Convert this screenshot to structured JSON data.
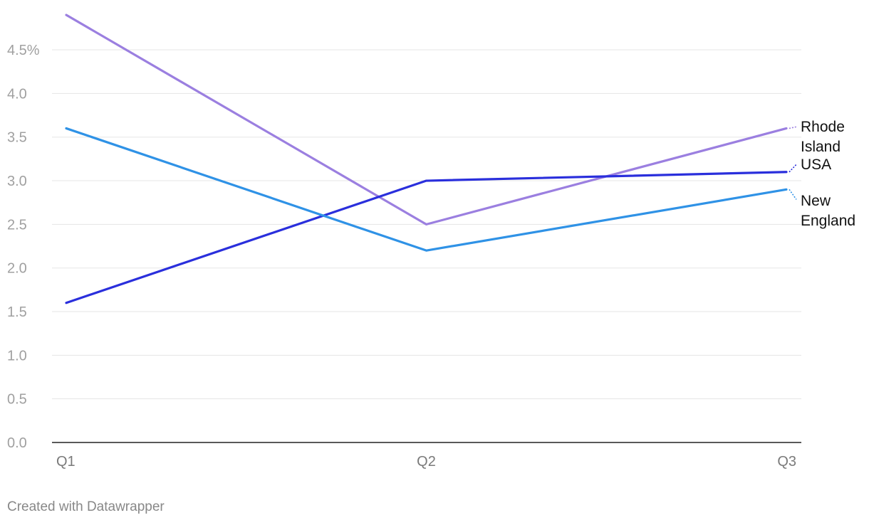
{
  "chart_data": {
    "type": "line",
    "categories": [
      "Q1",
      "Q2",
      "Q3"
    ],
    "ylim": [
      0,
      4.9
    ],
    "yticks": [
      0.0,
      0.5,
      1.0,
      1.5,
      2.0,
      2.5,
      3.0,
      3.5,
      4.0,
      4.5
    ],
    "ytick_labels": [
      "0.0",
      "0.5",
      "1.0",
      "1.5",
      "2.0",
      "2.5",
      "3.0",
      "3.5",
      "4.0",
      "4.5%"
    ],
    "grid": true,
    "series": [
      {
        "name": "Rhode Island",
        "label_lines": [
          "Rhode",
          "Island"
        ],
        "color": "#9b7fe0",
        "values": [
          4.9,
          2.5,
          3.6
        ]
      },
      {
        "name": "USA",
        "label_lines": [
          "USA"
        ],
        "color": "#2a2fdc",
        "values": [
          1.6,
          3.0,
          3.1
        ]
      },
      {
        "name": "New England",
        "label_lines": [
          "New",
          "England"
        ],
        "color": "#2f92e6",
        "values": [
          3.6,
          2.2,
          2.9
        ]
      }
    ]
  },
  "footer": {
    "text": "Created with Datawrapper"
  }
}
